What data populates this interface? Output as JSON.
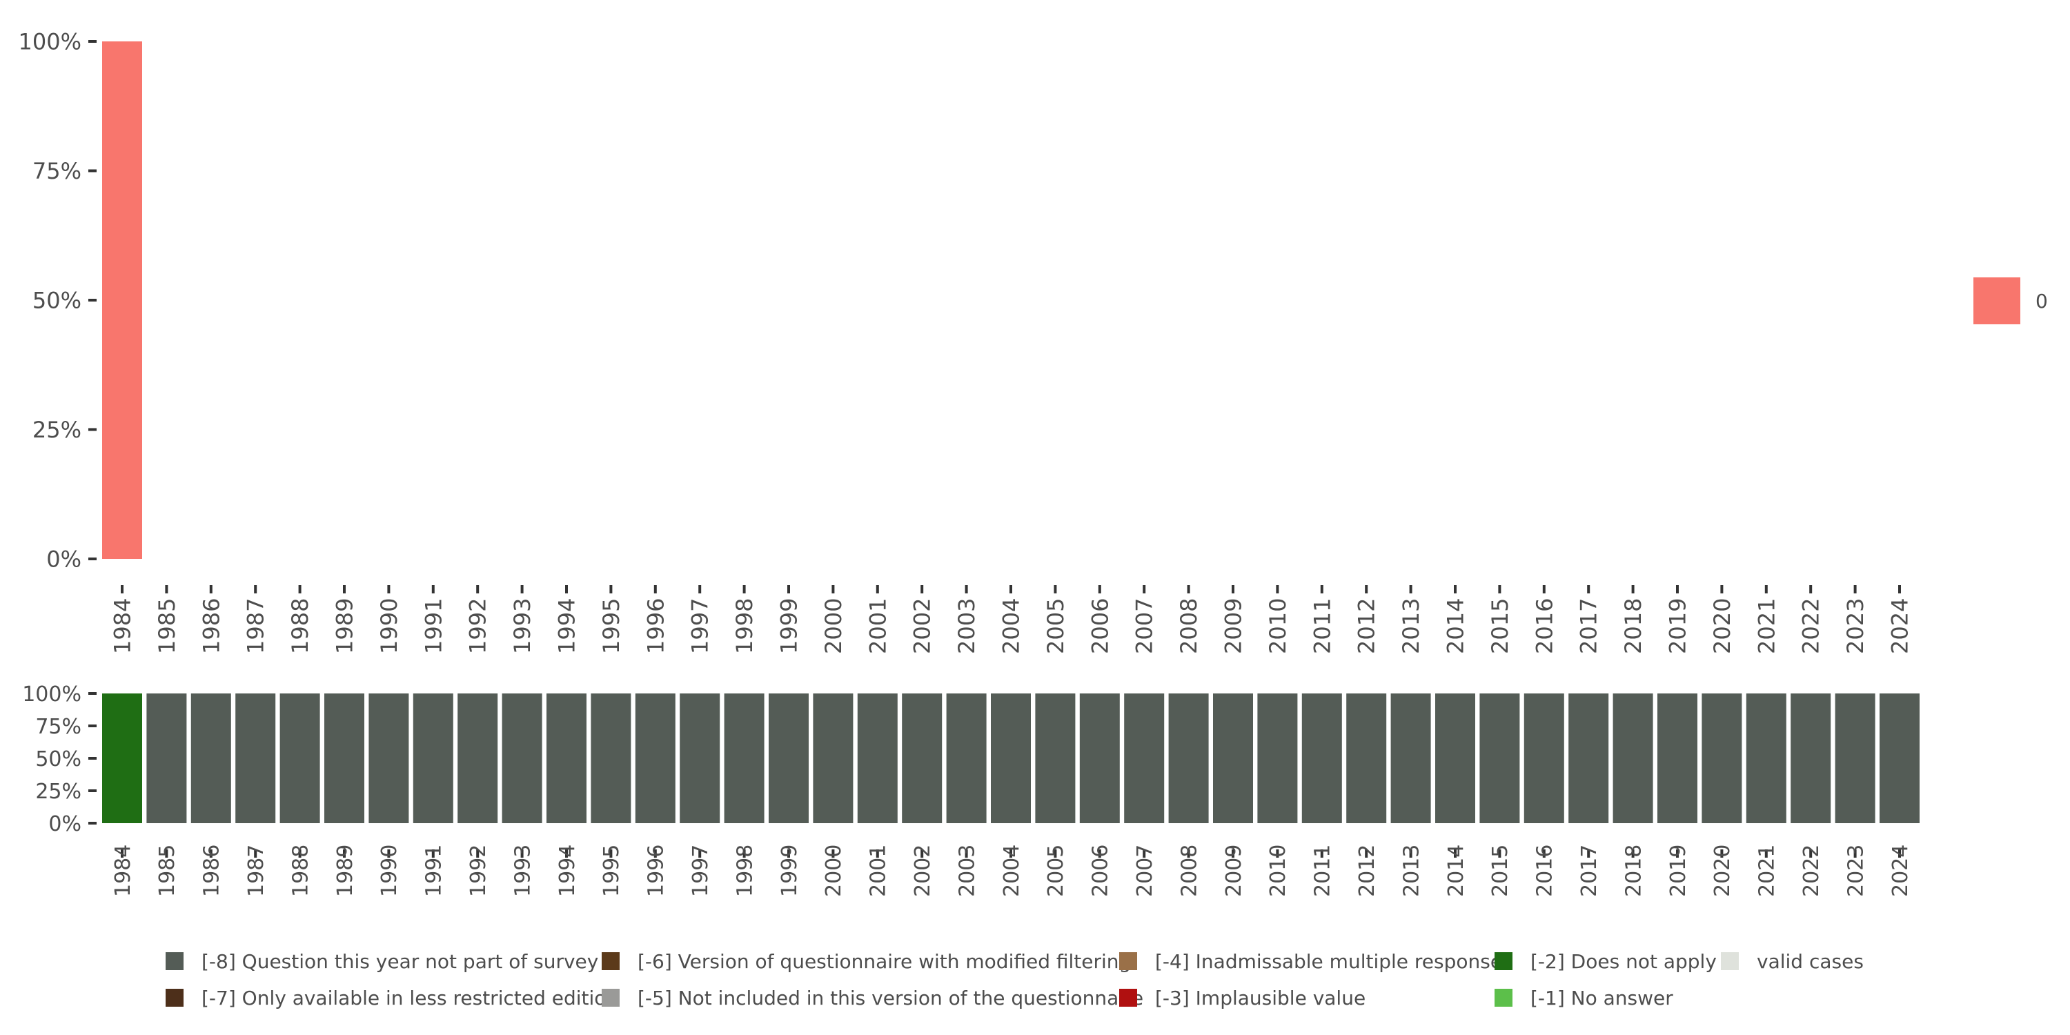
{
  "chart_data": [
    {
      "type": "bar",
      "stacked": true,
      "ylim": [
        0,
        1
      ],
      "y_ticks": [
        "0%",
        "25%",
        "50%",
        "75%",
        "100%"
      ],
      "categories": [
        "1984",
        "1985",
        "1986",
        "1987",
        "1988",
        "1989",
        "1990",
        "1991",
        "1992",
        "1993",
        "1994",
        "1995",
        "1996",
        "1997",
        "1998",
        "1999",
        "2000",
        "2001",
        "2002",
        "2003",
        "2004",
        "2005",
        "2006",
        "2007",
        "2008",
        "2009",
        "2010",
        "2011",
        "2012",
        "2013",
        "2014",
        "2015",
        "2016",
        "2017",
        "2018",
        "2019",
        "2020",
        "2021",
        "2022",
        "2023",
        "2024"
      ],
      "series": [
        {
          "name": "0",
          "color": "#f8766d",
          "values": [
            1,
            0,
            0,
            0,
            0,
            0,
            0,
            0,
            0,
            0,
            0,
            0,
            0,
            0,
            0,
            0,
            0,
            0,
            0,
            0,
            0,
            0,
            0,
            0,
            0,
            0,
            0,
            0,
            0,
            0,
            0,
            0,
            0,
            0,
            0,
            0,
            0,
            0,
            0,
            0,
            0
          ]
        }
      ],
      "legend": {
        "position": "right",
        "entries": [
          {
            "label": "0",
            "color": "#f8766d"
          }
        ]
      }
    },
    {
      "type": "bar",
      "stacked": true,
      "ylim": [
        0,
        1
      ],
      "y_ticks": [
        "0%",
        "25%",
        "50%",
        "75%",
        "100%"
      ],
      "categories": [
        "1984",
        "1985",
        "1986",
        "1987",
        "1988",
        "1989",
        "1990",
        "1991",
        "1992",
        "1993",
        "1994",
        "1995",
        "1996",
        "1997",
        "1998",
        "1999",
        "2000",
        "2001",
        "2002",
        "2003",
        "2004",
        "2005",
        "2006",
        "2007",
        "2008",
        "2009",
        "2010",
        "2011",
        "2012",
        "2013",
        "2014",
        "2015",
        "2016",
        "2017",
        "2018",
        "2019",
        "2020",
        "2021",
        "2022",
        "2023",
        "2024"
      ],
      "series": [
        {
          "name": "[-2] Does not apply",
          "color": "#1f6e14",
          "values": [
            1,
            0,
            0,
            0,
            0,
            0,
            0,
            0,
            0,
            0,
            0,
            0,
            0,
            0,
            0,
            0,
            0,
            0,
            0,
            0,
            0,
            0,
            0,
            0,
            0,
            0,
            0,
            0,
            0,
            0,
            0,
            0,
            0,
            0,
            0,
            0,
            0,
            0,
            0,
            0,
            0
          ]
        },
        {
          "name": "[-8] Question this year not part of survey",
          "color": "#545c56",
          "values": [
            0,
            1,
            1,
            1,
            1,
            1,
            1,
            1,
            1,
            1,
            1,
            1,
            1,
            1,
            1,
            1,
            1,
            1,
            1,
            1,
            1,
            1,
            1,
            1,
            1,
            1,
            1,
            1,
            1,
            1,
            1,
            1,
            1,
            1,
            1,
            1,
            1,
            1,
            1,
            1,
            1
          ]
        }
      ],
      "legend": {
        "position": "bottom",
        "entries": [
          {
            "label": "[-8] Question this year not part of survey",
            "color": "#545c56"
          },
          {
            "label": "[-7] Only available in less restricted edition",
            "color": "#4d2f1a"
          },
          {
            "label": "[-6] Version of questionnaire with modified filtering",
            "color": "#5c3a1a"
          },
          {
            "label": "[-5] Not included in this version of the questionnaire",
            "color": "#9a9a98"
          },
          {
            "label": "[-4] Inadmissable multiple response",
            "color": "#9a7048"
          },
          {
            "label": "[-3] Implausible value",
            "color": "#b01010"
          },
          {
            "label": "[-2] Does not apply",
            "color": "#1f6e14"
          },
          {
            "label": "[-1] No answer",
            "color": "#5cbf4a"
          },
          {
            "label": "valid cases",
            "color": "#dfe2dc"
          }
        ]
      }
    }
  ]
}
